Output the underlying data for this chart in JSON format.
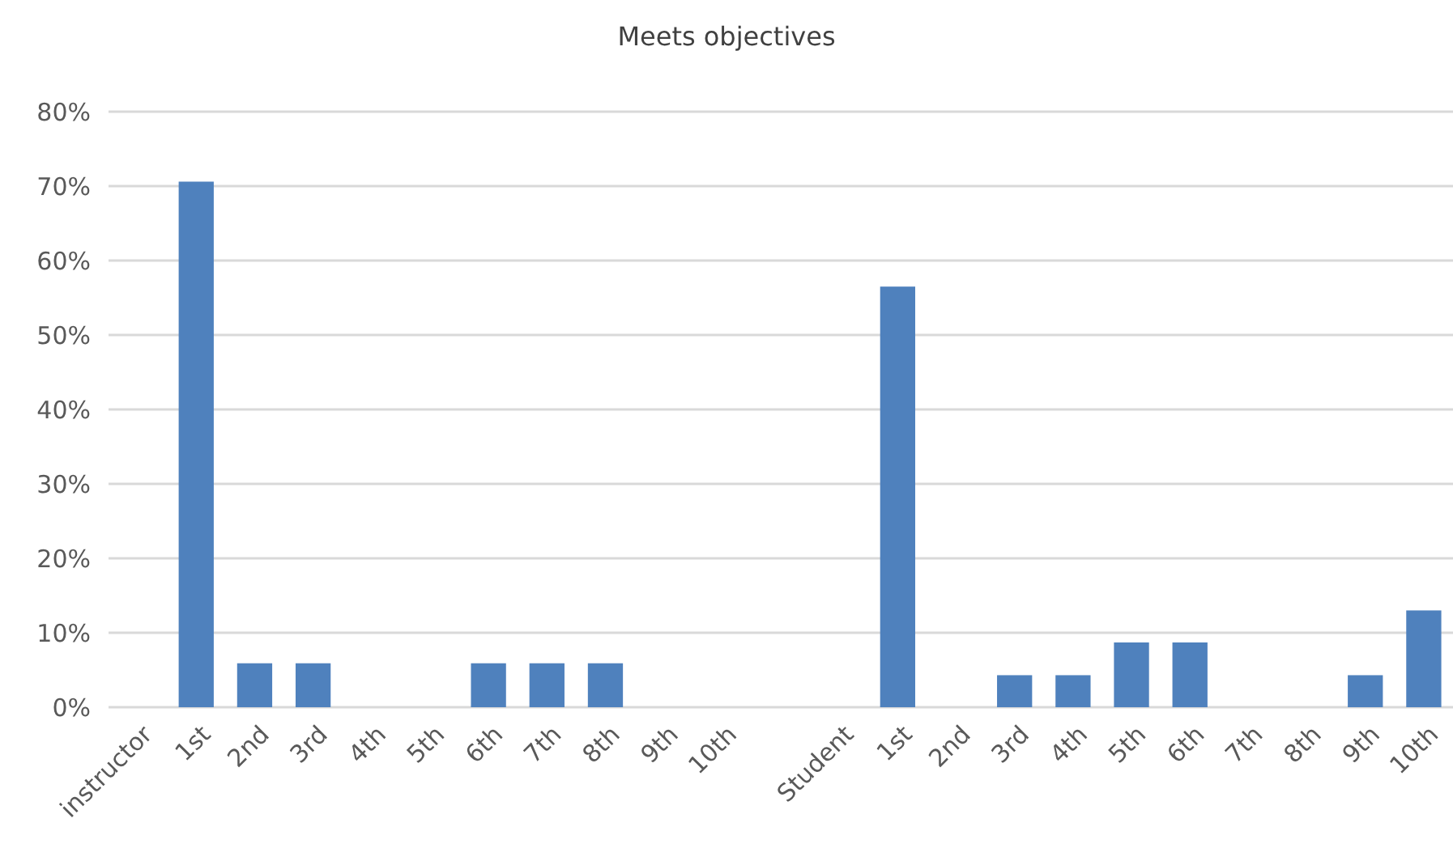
{
  "chart_data": {
    "type": "bar",
    "title": "Meets objectives",
    "categories": [
      "instructor",
      "1st",
      "2nd",
      "3rd",
      "4th",
      "5th",
      "6th",
      "7th",
      "8th",
      "9th",
      "10th",
      null,
      "Student",
      "1st",
      "2nd",
      "3rd",
      "4th",
      "5th",
      "6th",
      "7th",
      "8th",
      "9th",
      "10th"
    ],
    "values": [
      0,
      70.6,
      5.9,
      5.9,
      0,
      0,
      5.9,
      5.9,
      5.9,
      0,
      0,
      0,
      0,
      56.5,
      0,
      4.3,
      4.3,
      8.7,
      8.7,
      0,
      0,
      4.3,
      13
    ],
    "color": "#4f81bd",
    "ylim": [
      0,
      80
    ],
    "yticks": [
      {
        "value": 0,
        "label": "0%"
      },
      {
        "value": 10,
        "label": "10%"
      },
      {
        "value": 20,
        "label": "20%"
      },
      {
        "value": 30,
        "label": "30%"
      },
      {
        "value": 40,
        "label": "40%"
      },
      {
        "value": 50,
        "label": "50%"
      },
      {
        "value": 60,
        "label": "60%"
      },
      {
        "value": 70,
        "label": "70%"
      },
      {
        "value": 80,
        "label": "80%"
      }
    ],
    "grid": "y"
  }
}
